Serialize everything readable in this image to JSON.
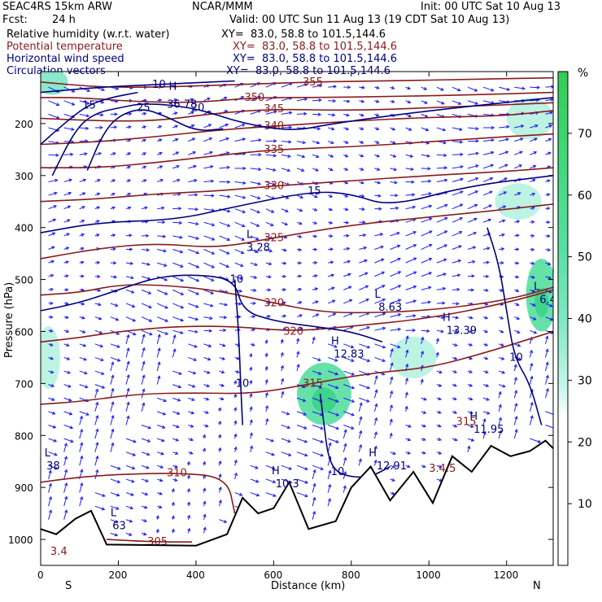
{
  "header": {
    "model": "SEAC4RS 15km ARW",
    "org": "NCAR/MMM",
    "init": "Init: 00 UTC Sat 10 Aug 13",
    "fcst_label": "Fcst:",
    "fcst_value": "24 h",
    "valid": "Valid: 00 UTC Sun 11 Aug 13 (19 CDT Sat 10 Aug 13)",
    "fields": [
      {
        "name": "Relative humidity (w.r.t. water)",
        "xy": "XY=  83.0, 58.8 to 101.5,144.6",
        "color": "#000000"
      },
      {
        "name": "Potential temperature",
        "xy": "XY=  83.0, 58.8 to 101.5,144.6",
        "color": "#8b1a1a"
      },
      {
        "name": "Horizontal wind speed",
        "xy": "XY=  83.0, 58.8 to 101.5,144.6",
        "color": "#000080"
      },
      {
        "name": "Circulation vectors",
        "xy": "XY=  83.0, 58.8 to 101.5,144.6",
        "color": "#000080"
      }
    ]
  },
  "colorbar": {
    "unit": "%",
    "ticks": [
      "10",
      "20",
      "30",
      "40",
      "50",
      "60",
      "70"
    ]
  },
  "colors": {
    "theta": "#8b1a1a",
    "wind": "#000080",
    "vector": "#1a1aff",
    "terrain": "#000000"
  },
  "chart_data": {
    "type": "cross-section",
    "xlabel": "Distance (km)",
    "ylabel": "Pressure (hPa)",
    "xlim": [
      0,
      1320
    ],
    "ylim": [
      1050,
      100
    ],
    "x_ticks": [
      0,
      200,
      400,
      600,
      800,
      1000,
      1200
    ],
    "y_ticks": [
      200,
      300,
      400,
      500,
      600,
      700,
      800,
      900,
      1000
    ],
    "x_end_labels": {
      "left": "S",
      "right": "N"
    },
    "potential_temperature": [
      {
        "label": "355",
        "points": [
          [
            0,
            120
          ],
          [
            150,
            130
          ],
          [
            300,
            130
          ],
          [
            500,
            125
          ],
          [
            700,
            120
          ],
          [
            900,
            118
          ],
          [
            1100,
            115
          ],
          [
            1320,
            112
          ]
        ]
      },
      {
        "label": "350",
        "points": [
          [
            0,
            150
          ],
          [
            100,
            150
          ],
          [
            250,
            158
          ],
          [
            400,
            160
          ],
          [
            550,
            150
          ],
          [
            700,
            150
          ],
          [
            900,
            148
          ],
          [
            1100,
            145
          ],
          [
            1320,
            140
          ]
        ]
      },
      {
        "label": "345",
        "points": [
          [
            0,
            190
          ],
          [
            150,
            195
          ],
          [
            300,
            195
          ],
          [
            450,
            180
          ],
          [
            600,
            172
          ],
          [
            800,
            175
          ],
          [
            1000,
            170
          ],
          [
            1320,
            160
          ]
        ]
      },
      {
        "label": "340",
        "points": [
          [
            0,
            240
          ],
          [
            150,
            235
          ],
          [
            300,
            225
          ],
          [
            450,
            213
          ],
          [
            600,
            205
          ],
          [
            800,
            195
          ],
          [
            1000,
            188
          ],
          [
            1200,
            185
          ],
          [
            1320,
            175
          ]
        ]
      },
      {
        "label": "335",
        "points": [
          [
            0,
            285
          ],
          [
            150,
            285
          ],
          [
            300,
            275
          ],
          [
            450,
            262
          ],
          [
            600,
            250
          ],
          [
            800,
            245
          ],
          [
            1000,
            235
          ],
          [
            1200,
            225
          ],
          [
            1320,
            220
          ]
        ]
      },
      {
        "label": "330",
        "points": [
          [
            0,
            350
          ],
          [
            150,
            345
          ],
          [
            300,
            335
          ],
          [
            450,
            330
          ],
          [
            600,
            320
          ],
          [
            800,
            310
          ],
          [
            1000,
            300
          ],
          [
            1200,
            292
          ],
          [
            1320,
            285
          ]
        ]
      },
      {
        "label": "325",
        "points": [
          [
            0,
            460
          ],
          [
            150,
            440
          ],
          [
            300,
            430
          ],
          [
            450,
            440
          ],
          [
            600,
            420
          ],
          [
            800,
            395
          ],
          [
            1000,
            380
          ],
          [
            1200,
            365
          ],
          [
            1320,
            355
          ]
        ]
      },
      {
        "label": "320",
        "points": [
          [
            0,
            530
          ],
          [
            100,
            525
          ],
          [
            200,
            510
          ],
          [
            300,
            510
          ],
          [
            450,
            520
          ],
          [
            600,
            545
          ],
          [
            700,
            560
          ],
          [
            800,
            565
          ],
          [
            1000,
            560
          ],
          [
            1200,
            540
          ],
          [
            1320,
            515
          ]
        ]
      },
      {
        "label": "320",
        "points": [
          [
            0,
            620
          ],
          [
            100,
            612
          ],
          [
            200,
            600
          ],
          [
            350,
            590
          ],
          [
            500,
            590
          ],
          [
            650,
            600
          ],
          [
            800,
            590
          ],
          [
            1000,
            575
          ],
          [
            1200,
            545
          ],
          [
            1320,
            520
          ]
        ]
      },
      {
        "label": "315",
        "points": [
          [
            0,
            740
          ],
          [
            100,
            735
          ],
          [
            250,
            720
          ],
          [
            400,
            718
          ],
          [
            550,
            720
          ],
          [
            700,
            700
          ],
          [
            850,
            680
          ],
          [
            1000,
            670
          ],
          [
            1150,
            640
          ],
          [
            1320,
            600
          ]
        ]
      },
      {
        "label": "310",
        "points": [
          [
            0,
            890
          ],
          [
            100,
            880
          ],
          [
            200,
            875
          ],
          [
            350,
            872
          ],
          [
            480,
            880
          ],
          [
            500,
            950
          ]
        ]
      },
      {
        "label": "305",
        "points": [
          [
            170,
            1000
          ],
          [
            300,
            1005
          ],
          [
            390,
            1005
          ]
        ]
      }
    ],
    "wind_speed": [
      {
        "label": "10",
        "points": [
          [
            0,
            140
          ],
          [
            150,
            130
          ],
          [
            300,
            125
          ],
          [
            500,
            118
          ]
        ]
      },
      {
        "label": "15",
        "points": [
          [
            0,
            240
          ],
          [
            60,
            200
          ],
          [
            120,
            165
          ],
          [
            180,
            150
          ],
          [
            250,
            140
          ]
        ]
      },
      {
        "label": "15",
        "points": [
          [
            0,
            410
          ],
          [
            150,
            390
          ],
          [
            350,
            385
          ],
          [
            500,
            360
          ],
          [
            700,
            330
          ],
          [
            800,
            335
          ],
          [
            900,
            360
          ],
          [
            1100,
            320
          ],
          [
            1320,
            300
          ]
        ]
      },
      {
        "label": "20",
        "points": [
          [
            30,
            300
          ],
          [
            90,
            210
          ],
          [
            140,
            180
          ],
          [
            200,
            170
          ],
          [
            270,
            160
          ],
          [
            400,
            170
          ],
          [
            520,
            200
          ],
          [
            650,
            215
          ],
          [
            750,
            200
          ],
          [
            1000,
            175
          ],
          [
            1320,
            150
          ]
        ]
      },
      {
        "label": "25",
        "points": [
          [
            120,
            290
          ],
          [
            160,
            220
          ],
          [
            200,
            185
          ],
          [
            260,
            170
          ],
          [
            320,
            185
          ],
          [
            400,
            215
          ],
          [
            470,
            210
          ]
        ]
      },
      {
        "label": "10",
        "points": [
          [
            0,
            560
          ],
          [
            100,
            545
          ],
          [
            200,
            520
          ],
          [
            300,
            495
          ],
          [
            400,
            490
          ],
          [
            500,
            500
          ],
          [
            520,
            560
          ],
          [
            600,
            580
          ],
          [
            700,
            590
          ],
          [
            800,
            600
          ],
          [
            880,
            620
          ]
        ]
      },
      {
        "label": "10",
        "points": [
          [
            500,
            500
          ],
          [
            510,
            600
          ],
          [
            515,
            700
          ],
          [
            520,
            780
          ]
        ]
      },
      {
        "label": "10",
        "points": [
          [
            1150,
            400
          ],
          [
            1180,
            470
          ],
          [
            1200,
            560
          ],
          [
            1220,
            650
          ],
          [
            1260,
            700
          ],
          [
            1290,
            780
          ]
        ]
      },
      {
        "label": "10",
        "points": [
          [
            720,
            720
          ],
          [
            730,
            780
          ],
          [
            740,
            840
          ],
          [
            760,
            870
          ],
          [
            800,
            880
          ],
          [
            850,
            880
          ],
          [
            900,
            860
          ]
        ]
      }
    ],
    "relative_humidity_shading": [
      {
        "level": 40,
        "center": [
          30,
          120
        ],
        "radius": [
          40,
          25
        ]
      },
      {
        "level": 30,
        "center": [
          1260,
          190
        ],
        "radius": [
          60,
          40
        ]
      },
      {
        "level": 30,
        "center": [
          1230,
          350
        ],
        "radius": [
          60,
          35
        ]
      },
      {
        "level": 50,
        "center": [
          1290,
          530
        ],
        "radius": [
          40,
          70
        ]
      },
      {
        "level": 30,
        "center": [
          20,
          650
        ],
        "radius": [
          30,
          60
        ]
      },
      {
        "level": 50,
        "center": [
          730,
          720
        ],
        "radius": [
          70,
          60
        ]
      },
      {
        "level": 30,
        "center": [
          960,
          650
        ],
        "radius": [
          60,
          40
        ]
      },
      {
        "level": 30,
        "center": [
          100,
          1005
        ],
        "radius": [
          70,
          20
        ]
      }
    ],
    "annotations": [
      {
        "text": "H",
        "x": 330,
        "y": 135,
        "color": "wind"
      },
      {
        "text": "36.78",
        "x": 325,
        "y": 170,
        "color": "wind"
      },
      {
        "text": "L",
        "x": 530,
        "y": 420,
        "color": "wind"
      },
      {
        "text": "3.28",
        "x": 530,
        "y": 445,
        "color": "wind"
      },
      {
        "text": "L",
        "x": 860,
        "y": 535,
        "color": "wind"
      },
      {
        "text": "8.63",
        "x": 870,
        "y": 560,
        "color": "wind"
      },
      {
        "text": "H",
        "x": 1035,
        "y": 580,
        "color": "wind"
      },
      {
        "text": "13.39",
        "x": 1045,
        "y": 605,
        "color": "wind"
      },
      {
        "text": "H",
        "x": 748,
        "y": 625,
        "color": "wind"
      },
      {
        "text": "12.83",
        "x": 755,
        "y": 650,
        "color": "wind"
      },
      {
        "text": "L",
        "x": 1270,
        "y": 520,
        "color": "wind"
      },
      {
        "text": "6.45",
        "x": 1285,
        "y": 545,
        "color": "wind"
      },
      {
        "text": "H",
        "x": 1105,
        "y": 770,
        "color": "wind"
      },
      {
        "text": "11.95",
        "x": 1115,
        "y": 795,
        "color": "wind"
      },
      {
        "text": "H",
        "x": 845,
        "y": 840,
        "color": "wind"
      },
      {
        "text": "12.91",
        "x": 865,
        "y": 865,
        "color": "wind"
      },
      {
        "text": "3.4.5",
        "x": 1000,
        "y": 870,
        "color": "theta"
      },
      {
        "text": "315",
        "x": 1070,
        "y": 780,
        "color": "theta"
      },
      {
        "text": "H",
        "x": 595,
        "y": 875,
        "color": "wind"
      },
      {
        "text": "10.3",
        "x": 605,
        "y": 900,
        "color": "wind"
      },
      {
        "text": "L",
        "x": 180,
        "y": 955,
        "color": "wind"
      },
      {
        "text": "63",
        "x": 185,
        "y": 980,
        "color": "wind"
      },
      {
        "text": "L",
        "x": 10,
        "y": 840,
        "color": "wind"
      },
      {
        "text": "38",
        "x": 15,
        "y": 865,
        "color": "wind"
      },
      {
        "text": "3.4",
        "x": 25,
        "y": 1030,
        "color": "theta"
      }
    ],
    "terrain": [
      [
        0,
        980
      ],
      [
        40,
        990
      ],
      [
        90,
        960
      ],
      [
        130,
        945
      ],
      [
        170,
        1010
      ],
      [
        400,
        1012
      ],
      [
        480,
        990
      ],
      [
        520,
        920
      ],
      [
        560,
        950
      ],
      [
        600,
        940
      ],
      [
        640,
        890
      ],
      [
        690,
        980
      ],
      [
        760,
        965
      ],
      [
        800,
        900
      ],
      [
        850,
        860
      ],
      [
        900,
        925
      ],
      [
        960,
        870
      ],
      [
        1010,
        930
      ],
      [
        1060,
        840
      ],
      [
        1110,
        870
      ],
      [
        1160,
        820
      ],
      [
        1210,
        840
      ],
      [
        1260,
        830
      ],
      [
        1300,
        810
      ],
      [
        1320,
        825
      ]
    ]
  }
}
